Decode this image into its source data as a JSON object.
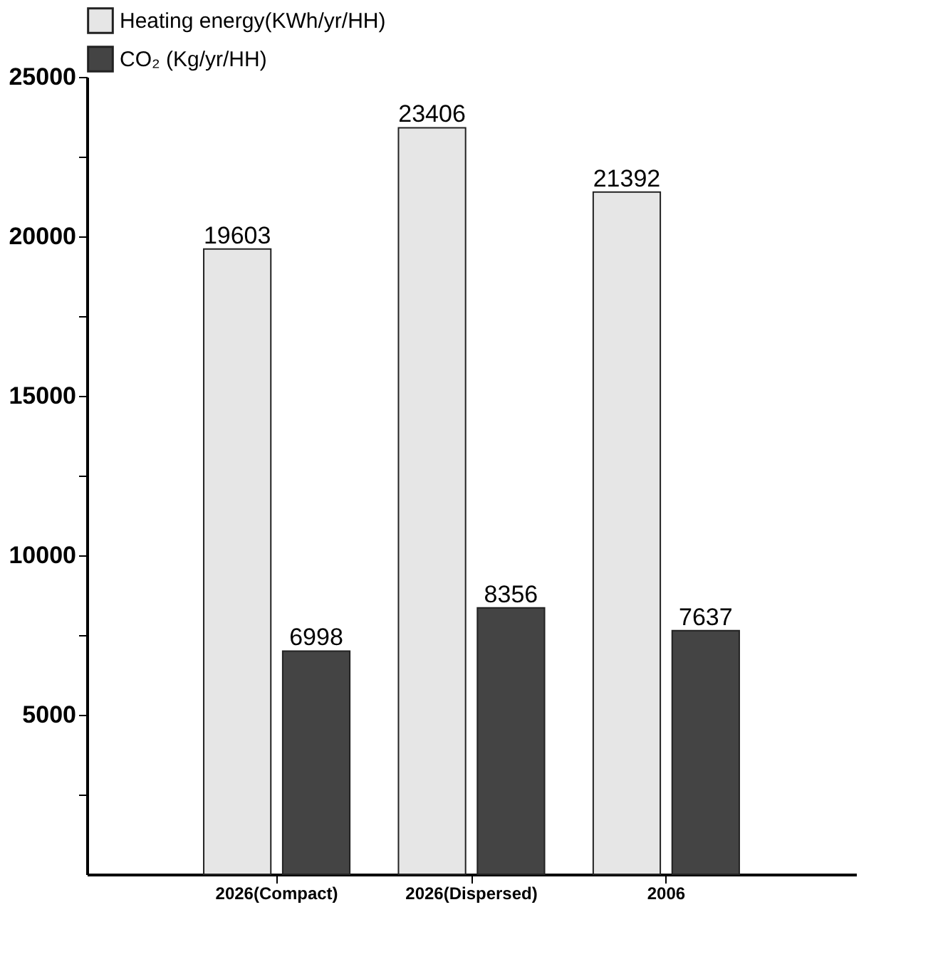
{
  "chart_data": {
    "type": "bar",
    "categories": [
      "2026(Compact)",
      "2026(Dispersed)",
      "2006"
    ],
    "series": [
      {
        "name": "Heating energy(KWh/yr/HH)",
        "color": "#e6e6e6",
        "values": [
          19603,
          23406,
          21392
        ]
      },
      {
        "name": "CO₂ (Kg/yr/HH)",
        "color": "#444444",
        "values": [
          6998,
          8356,
          7637
        ]
      }
    ],
    "ylim": [
      0,
      25000
    ],
    "yticks": [
      {
        "value": 2500,
        "label": null
      },
      5000,
      {
        "value": 7500,
        "label": null
      },
      10000,
      {
        "value": 12500,
        "label": null
      },
      15000,
      {
        "value": 17500,
        "label": null
      },
      20000,
      {
        "value": 22500,
        "label": null
      },
      25000
    ],
    "data_labels": true,
    "legend": "top",
    "grid": false
  }
}
